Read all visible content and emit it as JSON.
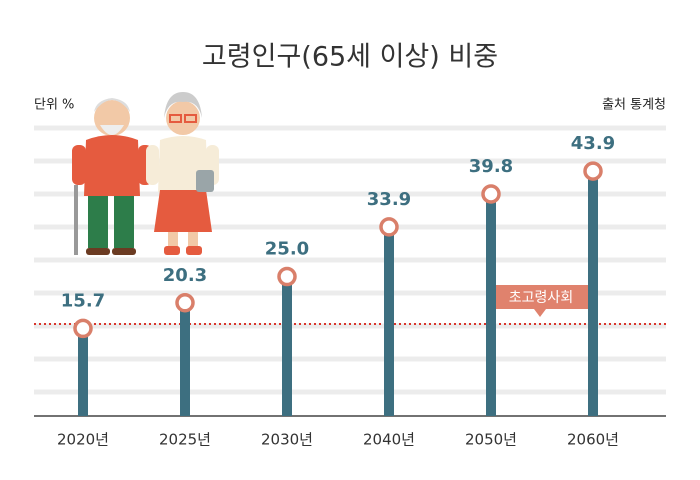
{
  "chart_data": {
    "type": "lollipop",
    "title": "고령인구(65세 이상) 비중",
    "unit": "단위 %",
    "source": "출처 통계청",
    "annotation": "초고령사회",
    "categories": [
      "2020년",
      "2025년",
      "2030년",
      "2040년",
      "2050년",
      "2060년"
    ],
    "values": [
      15.7,
      20.3,
      25.0,
      33.9,
      39.8,
      43.9
    ],
    "value_labels": [
      "15.7",
      "20.3",
      "25.0",
      "33.9",
      "39.8",
      "43.9"
    ],
    "color": "#3d6f80",
    "marker_color": "#d97f6a",
    "ylim": [
      0,
      45
    ]
  }
}
